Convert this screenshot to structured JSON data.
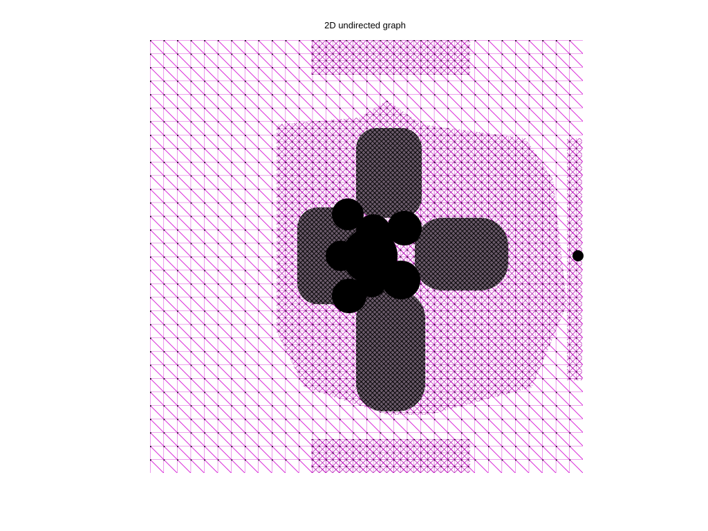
{
  "title": "2D undirected graph"
}
